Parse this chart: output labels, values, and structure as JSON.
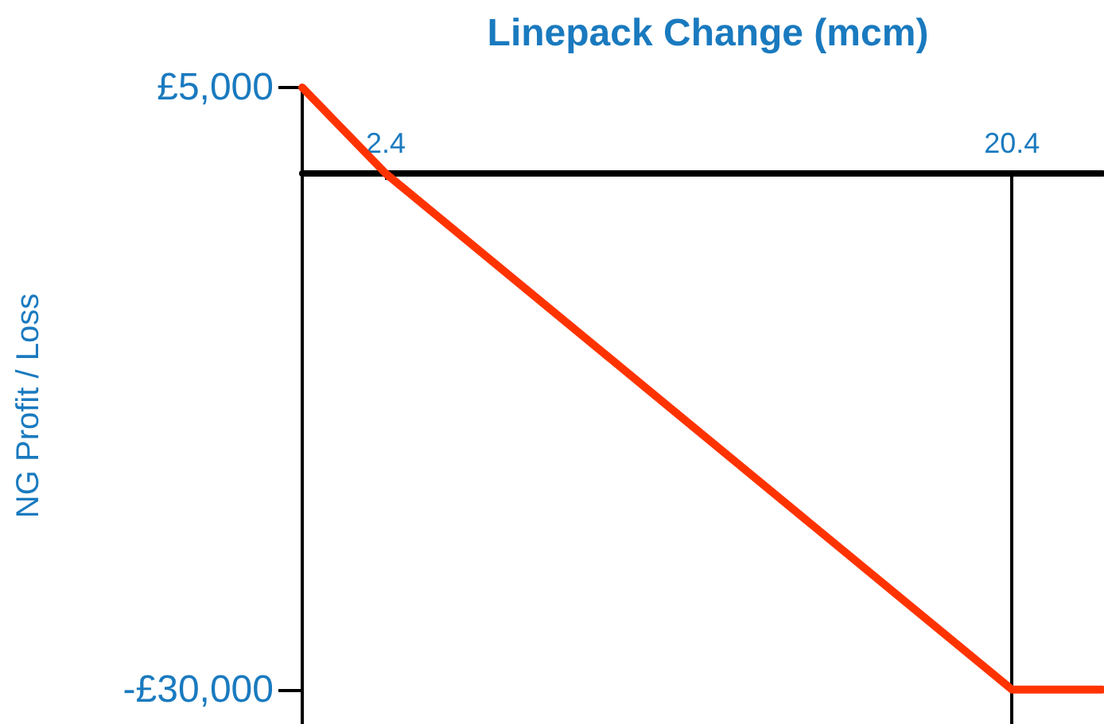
{
  "chart_data": {
    "type": "line",
    "title": "Linepack Change (mcm)",
    "ylabel": "NG Profit / Loss",
    "x": [
      0,
      2.4,
      20.4,
      23
    ],
    "series": [
      {
        "color": "#ff3300",
        "values": [
          5000,
          0,
          -30000,
          -30000
        ]
      }
    ],
    "xlim": [
      0,
      23
    ],
    "xticks": [
      2.4,
      20.4
    ],
    "ylim": [
      -32000,
      5000
    ],
    "yticks": [
      {
        "value": 5000,
        "label": "£5,000"
      },
      {
        "value": -30000,
        "label": "-£30,000"
      }
    ],
    "ref_lines": [
      {
        "axis": "x",
        "value": 20.4,
        "color": "#000000"
      }
    ],
    "marker": "none",
    "line_style": "solid"
  }
}
